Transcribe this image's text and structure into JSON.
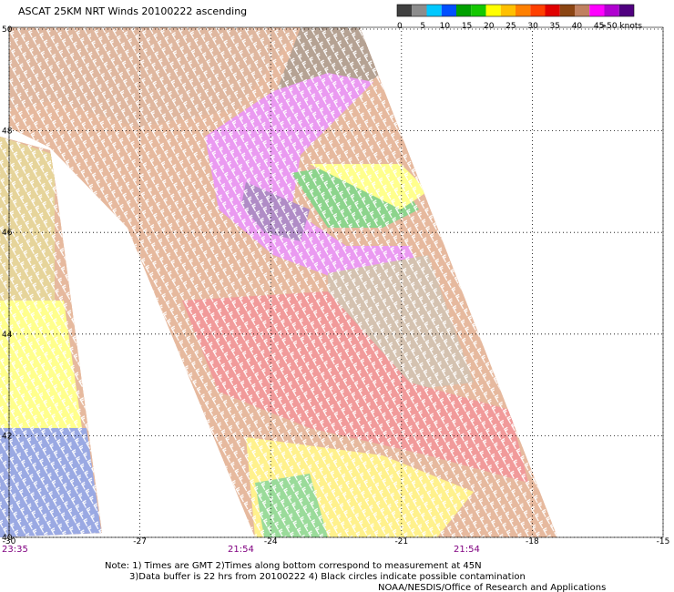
{
  "map": {
    "title": "ASCAT 25KM NRT Winds 20100222 ascending",
    "legend": {
      "labels": [
        "0",
        "5",
        "10",
        "15",
        "20",
        "25",
        "30",
        "35",
        "40",
        "45",
        ">50 knots"
      ],
      "colors": [
        "#404040",
        "#8c8c8c",
        "#00c8ff",
        "#0050ff",
        "#00a000",
        "#14c800",
        "#ffff00",
        "#ffc000",
        "#ff8000",
        "#ff4000",
        "#e00000",
        "#8b4513",
        "#c08060",
        "#ff00ff",
        "#b000d0",
        "#500080"
      ]
    },
    "lonlim": [
      -30,
      -15
    ],
    "latlim": [
      40,
      50
    ],
    "lon_ticks": [
      -30,
      -27,
      -24,
      -21,
      -18,
      -15
    ],
    "lat_ticks": [
      50,
      48,
      46,
      44,
      42,
      40
    ],
    "time_labels": [
      "23:35",
      "21:54",
      "21:54"
    ]
  },
  "notes": [
    "Note: 1) Times are GMT 2)Times along bottom correspond to measurement at 45N",
    "3)Data buffer is 22 hrs from 20100222 4) Black circles indicate possible contamination",
    "NOAA/NESDIS/Office of Research and Applications"
  ]
}
